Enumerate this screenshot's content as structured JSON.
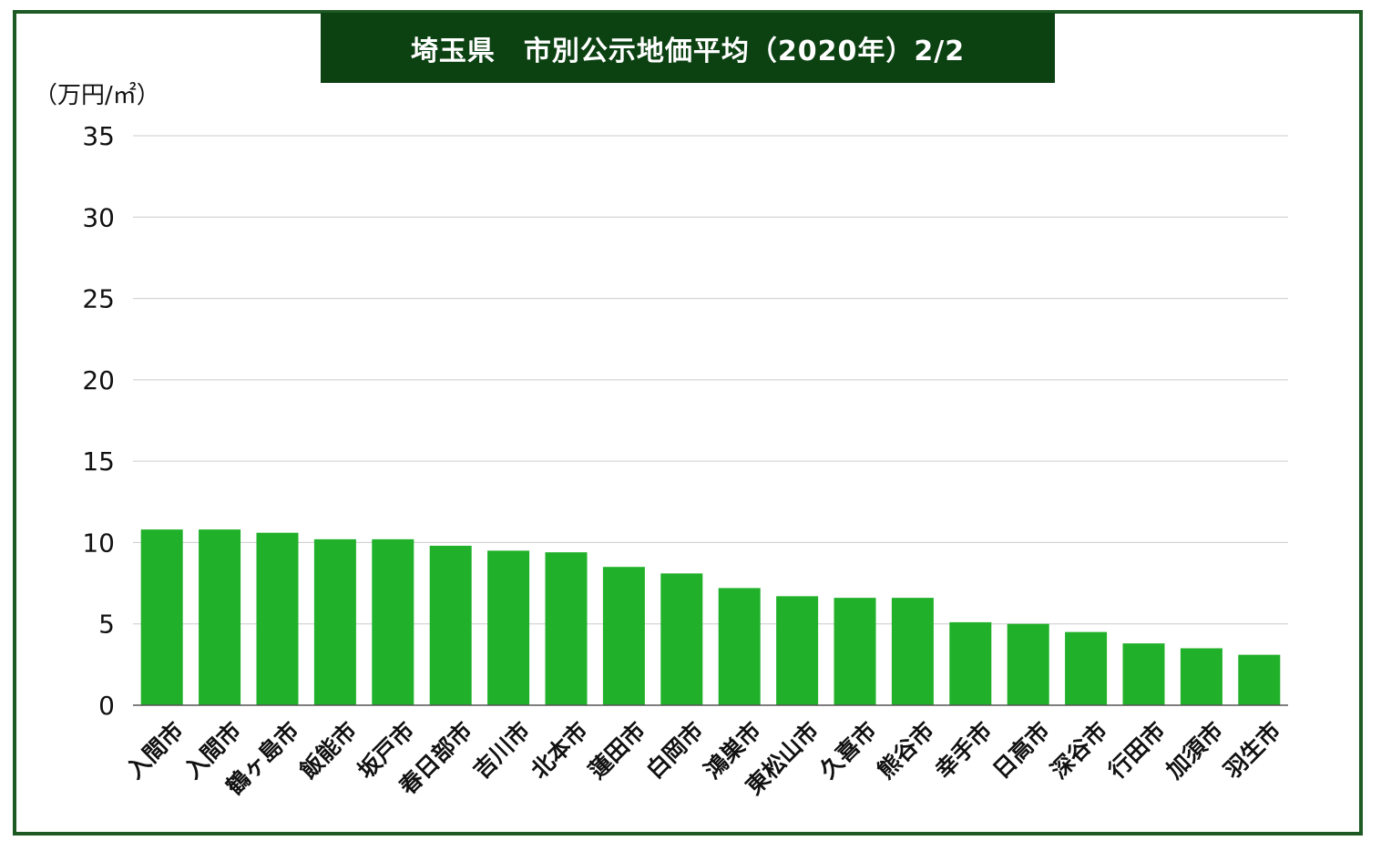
{
  "chart_data": {
    "type": "bar",
    "title": "埼玉県　市別公示地価平均（2020年）2/2",
    "ylabel": "（万円/㎡）",
    "xlabel": "",
    "ylim": [
      0,
      35
    ],
    "yticks": [
      0,
      5,
      10,
      15,
      20,
      25,
      30,
      35
    ],
    "grid": true,
    "categories": [
      "入間市",
      "入間市",
      "鶴ヶ島市",
      "飯能市",
      "坂戸市",
      "春日部市",
      "吉川市",
      "北本市",
      "蓮田市",
      "白岡市",
      "鴻巣市",
      "東松山市",
      "久喜市",
      "熊谷市",
      "幸手市",
      "日高市",
      "深谷市",
      "行田市",
      "加須市",
      "羽生市"
    ],
    "values": [
      10.8,
      10.8,
      10.6,
      10.2,
      10.2,
      9.8,
      9.5,
      9.4,
      8.5,
      8.1,
      7.2,
      6.7,
      6.6,
      6.6,
      5.1,
      5.0,
      4.5,
      3.8,
      3.5,
      3.1
    ],
    "bar_color": "#20b02a",
    "grid_color": "#cccccc",
    "title_bg": "#0c4112",
    "frame_color": "#1e5a23"
  }
}
